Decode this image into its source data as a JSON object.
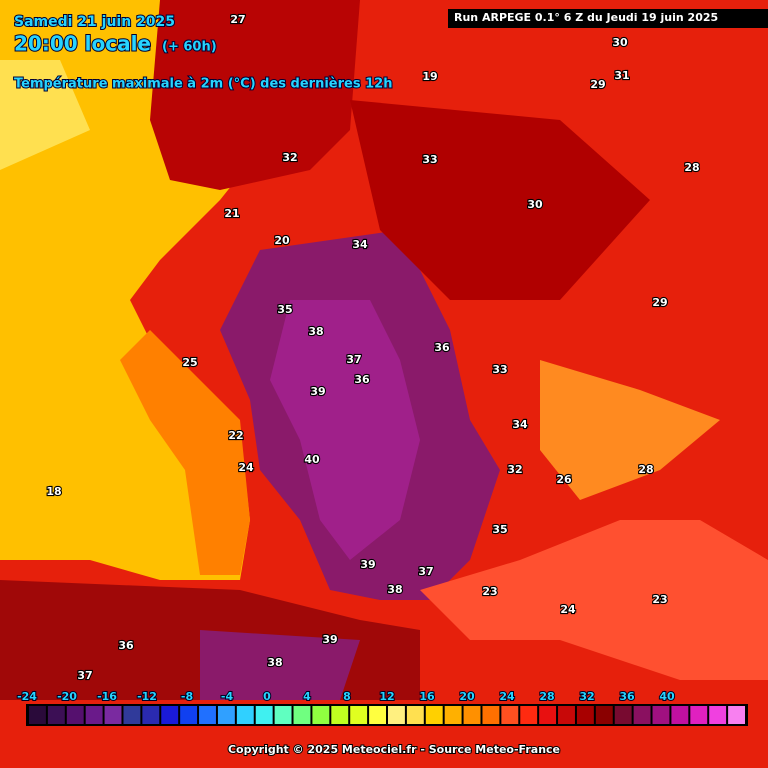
{
  "header": {
    "date": "Samedi 21 juin 2025",
    "time": "20:00 locale",
    "lead": "(+ 60h)",
    "field": "Température maximale à 2m (°C) des dernières 12h",
    "run": "Run ARPEGE 0.1° 6 Z du Jeudi 19 juin 2025"
  },
  "scale": {
    "labels": [
      -24,
      -20,
      -16,
      -12,
      -8,
      -4,
      0,
      4,
      8,
      12,
      16,
      20,
      24,
      28,
      32,
      36,
      40
    ],
    "colors": [
      "#2a0a3a",
      "#3c0f55",
      "#55106e",
      "#6a1a8a",
      "#7a2aa0",
      "#303a9a",
      "#2a2ab0",
      "#1a1ad8",
      "#1040f0",
      "#2070ff",
      "#30a0ff",
      "#30d0ff",
      "#40f0f0",
      "#60ffc0",
      "#70ff80",
      "#90ff40",
      "#c0ff20",
      "#e0ff20",
      "#ffff40",
      "#fff080",
      "#ffe050",
      "#ffd000",
      "#ffb000",
      "#ff9000",
      "#ff7000",
      "#ff5020",
      "#ff2a10",
      "#e81010",
      "#c80808",
      "#a80000",
      "#8a0000",
      "#780a30",
      "#8a1060",
      "#a01080",
      "#c010a0",
      "#e020c0",
      "#f040e0",
      "#f880f0"
    ]
  },
  "labels": [
    "38",
    "37",
    "36",
    "39",
    "40",
    "35",
    "34",
    "33",
    "32",
    "18",
    "25",
    "22",
    "24",
    "23",
    "29",
    "30",
    "31",
    "28",
    "21",
    "20",
    "19",
    "26",
    "27",
    "33",
    "34",
    "35",
    "36",
    "37",
    "38",
    "39",
    "32",
    "30",
    "29",
    "28",
    "24",
    "23",
    "37",
    "36",
    "39",
    "38"
  ],
  "footer": "Copyright © 2025 Meteociel.fr - Source Meteo-France"
}
